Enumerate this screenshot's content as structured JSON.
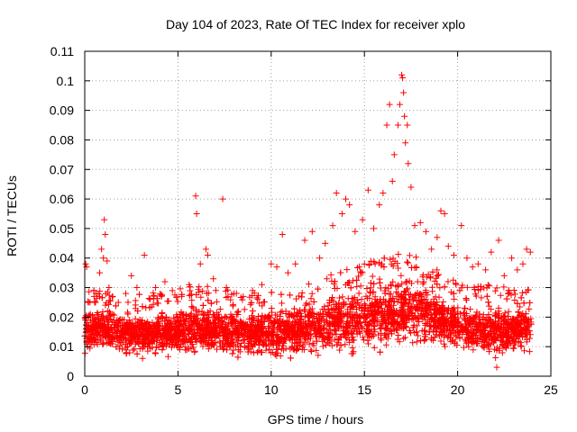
{
  "chart_data": {
    "type": "scatter",
    "title": "Day 104 of 2023, Rate Of TEC Index for receiver xplo",
    "xlabel": "GPS time / hours",
    "ylabel": "ROTI / TECUs",
    "xlim": [
      0,
      25
    ],
    "ylim": [
      0,
      0.11
    ],
    "xticks": [
      "0",
      "5",
      "10",
      "15",
      "20",
      "25"
    ],
    "yticks": [
      "0",
      "0.01",
      "0.02",
      "0.03",
      "0.04",
      "0.05",
      "0.06",
      "0.07",
      "0.08",
      "0.09",
      "0.1",
      "0.11"
    ],
    "grid": true,
    "marker": "+",
    "color": "#ff0000",
    "series": [
      {
        "name": "ROTI",
        "points": [
          [
            0.05,
            0.038
          ],
          [
            0.1,
            0.037
          ],
          [
            0.2,
            0.025
          ],
          [
            0.3,
            0.021
          ],
          [
            0.5,
            0.027
          ],
          [
            0.6,
            0.028
          ],
          [
            0.8,
            0.035
          ],
          [
            0.9,
            0.043
          ],
          [
            1.0,
            0.04
          ],
          [
            1.05,
            0.053
          ],
          [
            1.1,
            0.048
          ],
          [
            1.2,
            0.039
          ],
          [
            1.3,
            0.03
          ],
          [
            1.5,
            0.027
          ],
          [
            1.8,
            0.025
          ],
          [
            2.2,
            0.028
          ],
          [
            2.5,
            0.034
          ],
          [
            2.8,
            0.03
          ],
          [
            3.2,
            0.041
          ],
          [
            3.5,
            0.026
          ],
          [
            3.8,
            0.03
          ],
          [
            4.3,
            0.032
          ],
          [
            4.7,
            0.029
          ],
          [
            5.2,
            0.027
          ],
          [
            5.6,
            0.031
          ],
          [
            5.95,
            0.061
          ],
          [
            6.0,
            0.055
          ],
          [
            6.2,
            0.038
          ],
          [
            6.5,
            0.043
          ],
          [
            6.6,
            0.041
          ],
          [
            6.9,
            0.033
          ],
          [
            7.4,
            0.06
          ],
          [
            7.6,
            0.03
          ],
          [
            8.0,
            0.028
          ],
          [
            8.5,
            0.027
          ],
          [
            9.0,
            0.029
          ],
          [
            9.5,
            0.031
          ],
          [
            10.0,
            0.038
          ],
          [
            10.3,
            0.037
          ],
          [
            10.6,
            0.048
          ],
          [
            10.9,
            0.035
          ],
          [
            11.3,
            0.038
          ],
          [
            11.8,
            0.046
          ],
          [
            12.2,
            0.049
          ],
          [
            12.6,
            0.04
          ],
          [
            12.9,
            0.045
          ],
          [
            13.3,
            0.051
          ],
          [
            13.5,
            0.062
          ],
          [
            13.8,
            0.055
          ],
          [
            14.0,
            0.06
          ],
          [
            14.2,
            0.058
          ],
          [
            14.5,
            0.049
          ],
          [
            14.9,
            0.053
          ],
          [
            15.2,
            0.063
          ],
          [
            15.5,
            0.05
          ],
          [
            15.8,
            0.058
          ],
          [
            16.0,
            0.062
          ],
          [
            16.2,
            0.085
          ],
          [
            16.35,
            0.092
          ],
          [
            16.5,
            0.066
          ],
          [
            16.6,
            0.075
          ],
          [
            16.8,
            0.085
          ],
          [
            16.9,
            0.092
          ],
          [
            17.0,
            0.102
          ],
          [
            17.05,
            0.101
          ],
          [
            17.1,
            0.096
          ],
          [
            17.15,
            0.088
          ],
          [
            17.2,
            0.079
          ],
          [
            17.3,
            0.085
          ],
          [
            17.35,
            0.072
          ],
          [
            17.5,
            0.064
          ],
          [
            17.7,
            0.051
          ],
          [
            18.0,
            0.052
          ],
          [
            18.3,
            0.049
          ],
          [
            18.6,
            0.043
          ],
          [
            18.9,
            0.047
          ],
          [
            19.1,
            0.056
          ],
          [
            19.3,
            0.055
          ],
          [
            19.5,
            0.044
          ],
          [
            19.8,
            0.041
          ],
          [
            20.2,
            0.051
          ],
          [
            20.5,
            0.04
          ],
          [
            20.8,
            0.037
          ],
          [
            21.1,
            0.038
          ],
          [
            21.5,
            0.036
          ],
          [
            21.8,
            0.042
          ],
          [
            22.2,
            0.046
          ],
          [
            22.5,
            0.034
          ],
          [
            22.9,
            0.04
          ],
          [
            23.2,
            0.036
          ],
          [
            23.5,
            0.038
          ],
          [
            23.7,
            0.043
          ],
          [
            23.9,
            0.042
          ],
          [
            22.1,
            0.003
          ],
          [
            3.1,
            0.006
          ]
        ]
      }
    ],
    "dense_band": {
      "note": "bulk of samples lie between a lower and upper envelope per hour",
      "hours": [
        0,
        1,
        2,
        3,
        4,
        5,
        6,
        7,
        8,
        9,
        10,
        11,
        12,
        13,
        14,
        15,
        16,
        17,
        18,
        19,
        20,
        21,
        22,
        23,
        24
      ],
      "lower": [
        0.008,
        0.008,
        0.007,
        0.006,
        0.007,
        0.007,
        0.007,
        0.007,
        0.007,
        0.007,
        0.006,
        0.006,
        0.007,
        0.007,
        0.007,
        0.008,
        0.008,
        0.009,
        0.009,
        0.009,
        0.008,
        0.007,
        0.006,
        0.007,
        0.008
      ],
      "upper": [
        0.023,
        0.024,
        0.022,
        0.022,
        0.023,
        0.024,
        0.025,
        0.024,
        0.023,
        0.023,
        0.024,
        0.025,
        0.026,
        0.028,
        0.03,
        0.032,
        0.035,
        0.036,
        0.034,
        0.03,
        0.026,
        0.025,
        0.025,
        0.024,
        0.024
      ]
    }
  }
}
